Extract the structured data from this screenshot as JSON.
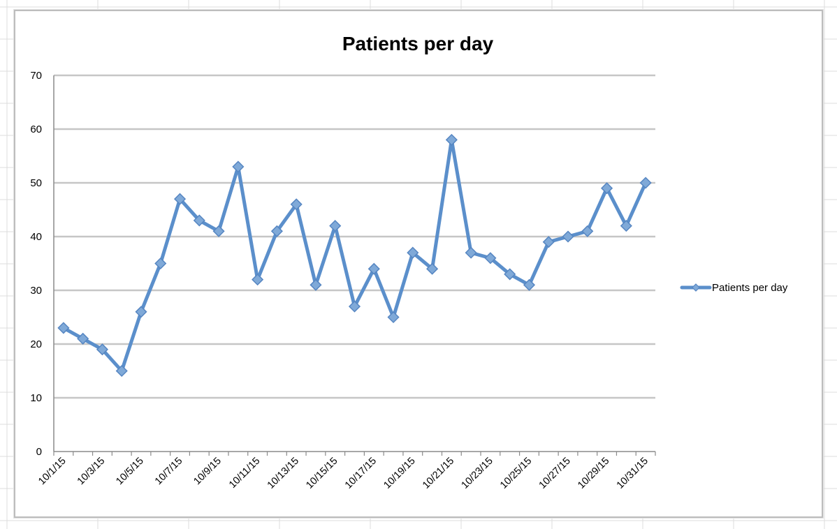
{
  "chart_data": {
    "type": "line",
    "title": "Patients per day",
    "xlabel": "",
    "ylabel": "",
    "ylim": [
      0,
      70
    ],
    "yticks": [
      0,
      10,
      20,
      30,
      40,
      50,
      60,
      70
    ],
    "grid": "horizontal",
    "legend": "right",
    "categories": [
      "10/1/15",
      "10/2/15",
      "10/3/15",
      "10/4/15",
      "10/5/15",
      "10/6/15",
      "10/7/15",
      "10/8/15",
      "10/9/15",
      "10/10/15",
      "10/11/15",
      "10/12/15",
      "10/13/15",
      "10/14/15",
      "10/15/15",
      "10/16/15",
      "10/17/15",
      "10/18/15",
      "10/19/15",
      "10/20/15",
      "10/21/15",
      "10/22/15",
      "10/23/15",
      "10/24/15",
      "10/25/15",
      "10/26/15",
      "10/27/15",
      "10/28/15",
      "10/29/15",
      "10/30/15",
      "10/31/15"
    ],
    "x_tick_labels": [
      "10/1/15",
      "10/3/15",
      "10/5/15",
      "10/7/15",
      "10/9/15",
      "10/11/15",
      "10/13/15",
      "10/15/15",
      "10/17/15",
      "10/19/15",
      "10/21/15",
      "10/23/15",
      "10/25/15",
      "10/27/15",
      "10/29/15",
      "10/31/15"
    ],
    "series": [
      {
        "name": "Patients per day",
        "color": "#5b8fcb",
        "marker": "diamond",
        "values": [
          23,
          21,
          19,
          15,
          26,
          35,
          47,
          43,
          41,
          53,
          32,
          41,
          46,
          31,
          42,
          27,
          34,
          25,
          37,
          34,
          58,
          37,
          36,
          33,
          31,
          39,
          40,
          41,
          49,
          42,
          50
        ]
      }
    ]
  }
}
